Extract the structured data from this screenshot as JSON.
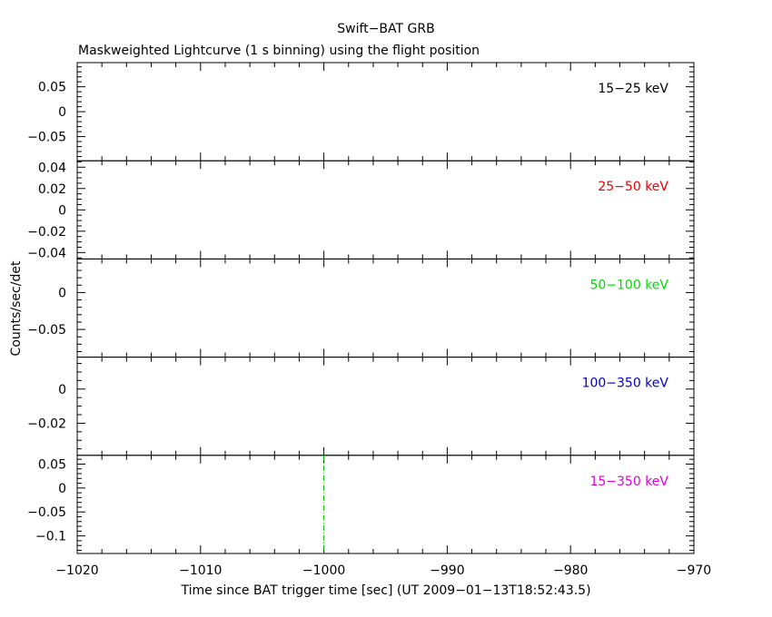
{
  "chart_data": {
    "type": "line",
    "title": "Swift−BAT GRB",
    "subtitle": "Maskweighted Lightcurve (1 s binning) using the flight position",
    "xlabel": "Time since BAT trigger time [sec] (UT 2009−01−13T18:52:43.5)",
    "ylabel": "Counts/sec/det",
    "xlim": [
      -1020,
      -970
    ],
    "x_ticks": [
      -1020,
      -1010,
      -1000,
      -990,
      -980,
      -970
    ],
    "x_tick_labels": [
      "−1020",
      "−1010",
      "−1000",
      "−990",
      "−980",
      "−970"
    ],
    "x_minor_step": 2,
    "vline_x": -1000,
    "vline_color": "#00bb00",
    "panels": [
      {
        "band": "15−25 keV",
        "color": "#000000",
        "ylim": [
          -0.0985,
          0.0985
        ],
        "y_ticks": [
          0.05,
          0,
          -0.05
        ],
        "y_tick_labels": [
          "0.05",
          "0",
          "−0.05"
        ],
        "y_minor_step": 0.01,
        "show_vline": false
      },
      {
        "band": "25−50 keV",
        "color": "#ee0000",
        "ylim": [
          -0.046,
          0.046
        ],
        "y_ticks": [
          0.04,
          0.02,
          0,
          -0.02,
          -0.04
        ],
        "y_tick_labels": [
          "0.04",
          "0.02",
          "0",
          "−0.02",
          "−0.04"
        ],
        "y_minor_step": 0.005,
        "show_vline": false
      },
      {
        "band": "50−100 keV",
        "color": "#00dd00",
        "ylim": [
          -0.0875,
          0.0455
        ],
        "y_ticks": [
          0,
          -0.05
        ],
        "y_tick_labels": [
          "0",
          "−0.05"
        ],
        "y_minor_step": 0.01,
        "show_vline": false
      },
      {
        "band": "100−350 keV",
        "color": "#0000cc",
        "ylim": [
          -0.0388,
          0.0187
        ],
        "y_ticks": [
          0,
          -0.02
        ],
        "y_tick_labels": [
          "0",
          "−0.02"
        ],
        "y_minor_step": 0.005,
        "show_vline": false
      },
      {
        "band": "15−350 keV",
        "color": "#dd00dd",
        "ylim": [
          -0.1367,
          0.0683
        ],
        "y_ticks": [
          0.05,
          0,
          -0.05,
          -0.1
        ],
        "y_tick_labels": [
          "0.05",
          "0",
          "−0.05",
          "−0.1"
        ],
        "y_minor_step": 0.01,
        "show_vline": true
      }
    ]
  }
}
